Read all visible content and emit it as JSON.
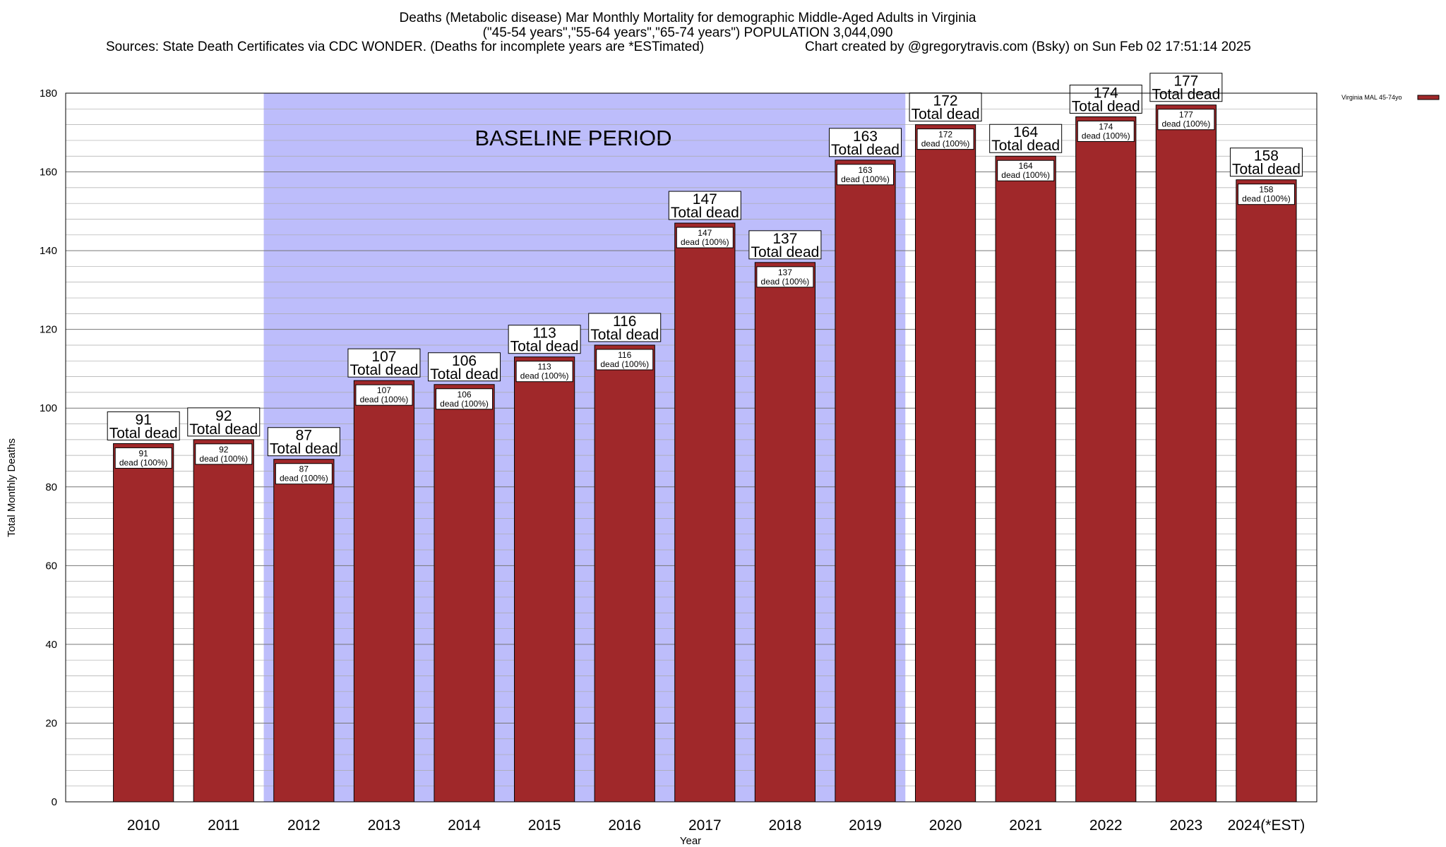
{
  "chart_data": {
    "type": "bar",
    "title_lines": [
      "Deaths (Metabolic disease) Mar Monthly Mortality for demographic Middle-Aged Adults in Virginia",
      "(\"45-54 years\",\"55-64 years\",\"65-74 years\") POPULATION 3,044,090",
      "Sources: State Death Certificates via CDC WONDER. (Deaths for incomplete years are *ESTimated)",
      "Chart created by @gregorytravis.com (Bsky) on Sun Feb 02 17:51:14 2025"
    ],
    "xlabel": "Year",
    "ylabel": "Total Monthly Deaths",
    "ylim": [
      0,
      180
    ],
    "yticks": [
      0,
      20,
      40,
      60,
      80,
      100,
      120,
      140,
      160,
      180
    ],
    "minor_grid_step": 4,
    "grid": true,
    "categories": [
      "2010",
      "2011",
      "2012",
      "2013",
      "2014",
      "2015",
      "2016",
      "2017",
      "2018",
      "2019",
      "2020",
      "2021",
      "2022",
      "2023",
      "2024(*EST)"
    ],
    "series": [
      {
        "name": "Virginia MAL 45-74yo",
        "color": "#a0282a",
        "values": [
          91,
          92,
          87,
          107,
          106,
          113,
          116,
          147,
          137,
          163,
          172,
          164,
          174,
          177,
          158
        ]
      }
    ],
    "total_label_text": "Total dead",
    "inner_label_text": "dead (100%)",
    "baseline": {
      "label": "BASELINE PERIOD",
      "start_category": "2012",
      "end_category": "2019",
      "color": "#bdbdfb"
    },
    "legend_position": "top-right"
  }
}
